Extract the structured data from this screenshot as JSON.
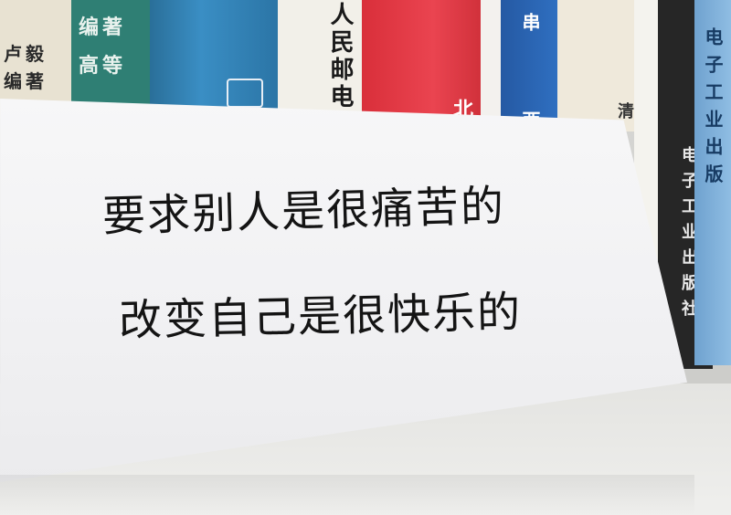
{
  "photo": {
    "handwritten_lines": [
      "要求别人是很痛苦的",
      "改变自己是很快乐的"
    ],
    "book_spines": [
      {
        "text": "卢毅 编著",
        "bg": "#e8e2d2",
        "fg": "#2a2a2a"
      },
      {
        "text": "编著 高等",
        "bg": "#2f7f74",
        "fg": "#e9f2ee"
      },
      {
        "text": "",
        "bg": "#2f7aa8",
        "fg": "#ffffff"
      },
      {
        "text": "人民邮电",
        "bg": "#f2f0e9",
        "fg": "#1a1a1a"
      },
      {
        "text": "北",
        "bg": "#e43642",
        "fg": "#ffffff"
      },
      {
        "text": "",
        "bg": "#f3f1ee",
        "fg": "#1a1a1a"
      },
      {
        "text": "串 西南",
        "bg": "#2b66b3",
        "fg": "#ffffff"
      },
      {
        "text": "清",
        "bg": "#efe9db",
        "fg": "#333333"
      },
      {
        "text": "",
        "bg": "#f4f3ee",
        "fg": "#333333"
      },
      {
        "text": "电子工业出版社",
        "bg": "#262626",
        "fg": "#e8e8e8"
      },
      {
        "text": "电子工业出版",
        "bg": "#7fb0d9",
        "fg": "#173b63"
      }
    ],
    "colors": {
      "ink": "#141414",
      "paper": "#f4f4f6"
    }
  }
}
